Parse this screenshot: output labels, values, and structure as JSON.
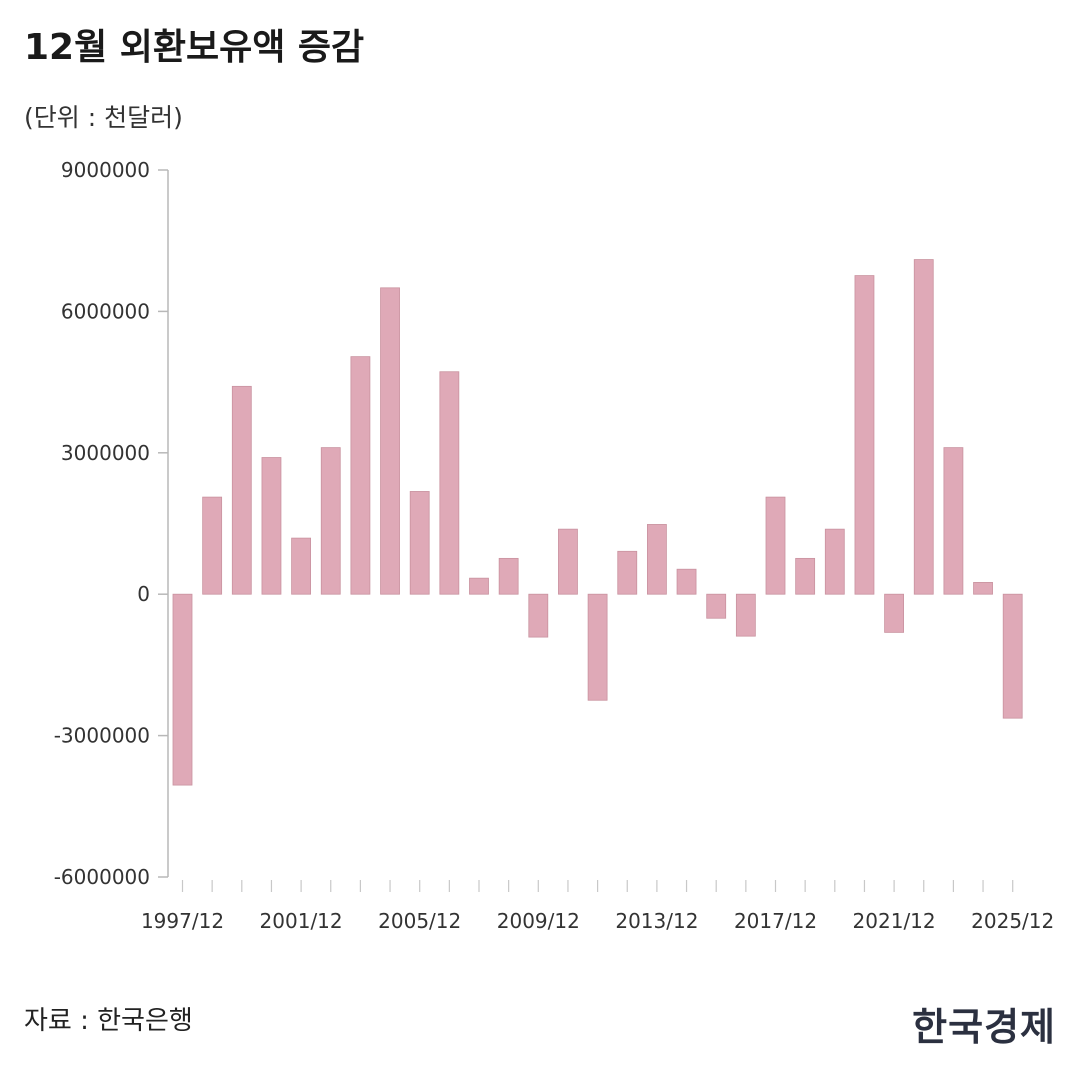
{
  "header": {
    "title": "12월 외환보유액 증감",
    "unit": "(단위 : 천달러)"
  },
  "footer": {
    "source": "자료 : 한국은행",
    "brand": "한국경제"
  },
  "colors": {
    "bar": "#dfa9b7",
    "bar_edge": "#c9929f",
    "axis": "#b8b8b8"
  },
  "chart_data": {
    "type": "bar",
    "title": "12월 외환보유액 증감",
    "subtitle": "(단위 : 천달러)",
    "xlabel": "",
    "ylabel": "",
    "ylim": [
      -6000000,
      9000000
    ],
    "yticks": [
      9000000,
      6000000,
      3000000,
      0,
      -3000000,
      -6000000
    ],
    "ytick_labels": [
      "9000000",
      "6000000",
      "3000000",
      "0",
      "-3000000",
      "-6000000"
    ],
    "xtick_labels": [
      "1997/12",
      "2001/12",
      "2005/12",
      "2009/12",
      "2013/12",
      "2017/12",
      "2021/12",
      "2025/12"
    ],
    "grid": false,
    "legend": null,
    "categories": [
      "1997/12",
      "1998/12",
      "1999/12",
      "2000/12",
      "2001/12",
      "2002/12",
      "2003/12",
      "2004/12",
      "2005/12",
      "2006/12",
      "2007/12",
      "2008/12",
      "2009/12",
      "2010/12",
      "2011/12",
      "2012/12",
      "2013/12",
      "2014/12",
      "2015/12",
      "2016/12",
      "2017/12",
      "2018/12",
      "2019/12",
      "2020/12",
      "2021/12",
      "2022/12",
      "2023/12",
      "2024/12",
      "2025/12"
    ],
    "values": [
      -4050000,
      2060000,
      4410000,
      2900000,
      1190000,
      3110000,
      5040000,
      6500000,
      2180000,
      4720000,
      340000,
      760000,
      -910000,
      1380000,
      -2250000,
      910000,
      1480000,
      530000,
      -510000,
      -890000,
      2060000,
      760000,
      1380000,
      6760000,
      -810000,
      7100000,
      3110000,
      250000,
      -2630000
    ],
    "source": "자료 : 한국은행"
  }
}
